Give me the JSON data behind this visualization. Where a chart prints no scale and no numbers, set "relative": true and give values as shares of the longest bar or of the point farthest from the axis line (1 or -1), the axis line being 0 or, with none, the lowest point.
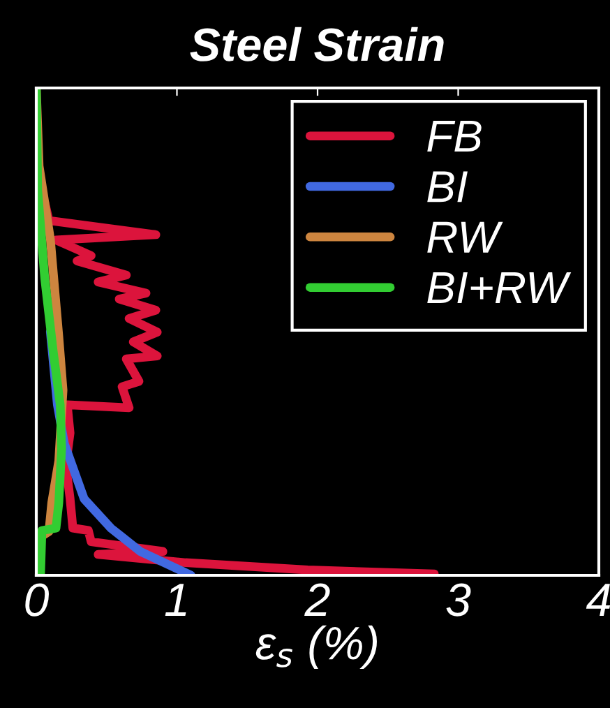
{
  "chart_data": {
    "type": "line",
    "title": "Steel Strain",
    "xlabel": "ε$_{s}$ (%)",
    "relative": true,
    "xlim": [
      0,
      4
    ],
    "xticks": [
      0,
      1,
      2,
      3,
      4
    ],
    "legend": "top right",
    "grid": false,
    "series": [
      {
        "name": "FB",
        "color": "#dc143c",
        "x": [
          0.06,
          0.09,
          0.85,
          0.14,
          0.39,
          0.29,
          0.64,
          0.44,
          0.78,
          0.59,
          0.85,
          0.66,
          0.86,
          0.69,
          0.86,
          0.64,
          0.73,
          0.61,
          0.66,
          0.22,
          0.24,
          0.21,
          0.24,
          0.26,
          0.37,
          0.39,
          0.9,
          0.44,
          1.06,
          1.93,
          2.83
        ],
        "values": [
          0.765,
          0.728,
          0.699,
          0.688,
          0.656,
          0.645,
          0.616,
          0.602,
          0.579,
          0.567,
          0.544,
          0.527,
          0.499,
          0.479,
          0.45,
          0.444,
          0.398,
          0.387,
          0.344,
          0.35,
          0.292,
          0.226,
          0.158,
          0.097,
          0.092,
          0.069,
          0.049,
          0.043,
          0.026,
          0.011,
          0.003
        ]
      },
      {
        "name": "BI",
        "color": "#4169e1",
        "x": [
          0.1,
          0.15,
          0.2,
          0.34,
          0.53,
          0.74,
          1.1
        ],
        "values": [
          0.5,
          0.35,
          0.27,
          0.157,
          0.097,
          0.049,
          0.0
        ]
      },
      {
        "name": "RW",
        "color": "#cd853f",
        "x": [
          0.0,
          0.02,
          0.1,
          0.16,
          0.19,
          0.16,
          0.11,
          0.09,
          0.02,
          0.01
        ],
        "values": [
          1.0,
          0.84,
          0.69,
          0.49,
          0.38,
          0.235,
          0.149,
          0.09,
          0.077,
          0.0
        ]
      },
      {
        "name": "BI+RW",
        "color": "#32cd32",
        "x": [
          0.0,
          0.01,
          0.06,
          0.12,
          0.17,
          0.18,
          0.16,
          0.14,
          0.04,
          0.03
        ],
        "values": [
          1.0,
          0.79,
          0.61,
          0.46,
          0.35,
          0.26,
          0.149,
          0.097,
          0.092,
          0.0
        ]
      }
    ]
  }
}
